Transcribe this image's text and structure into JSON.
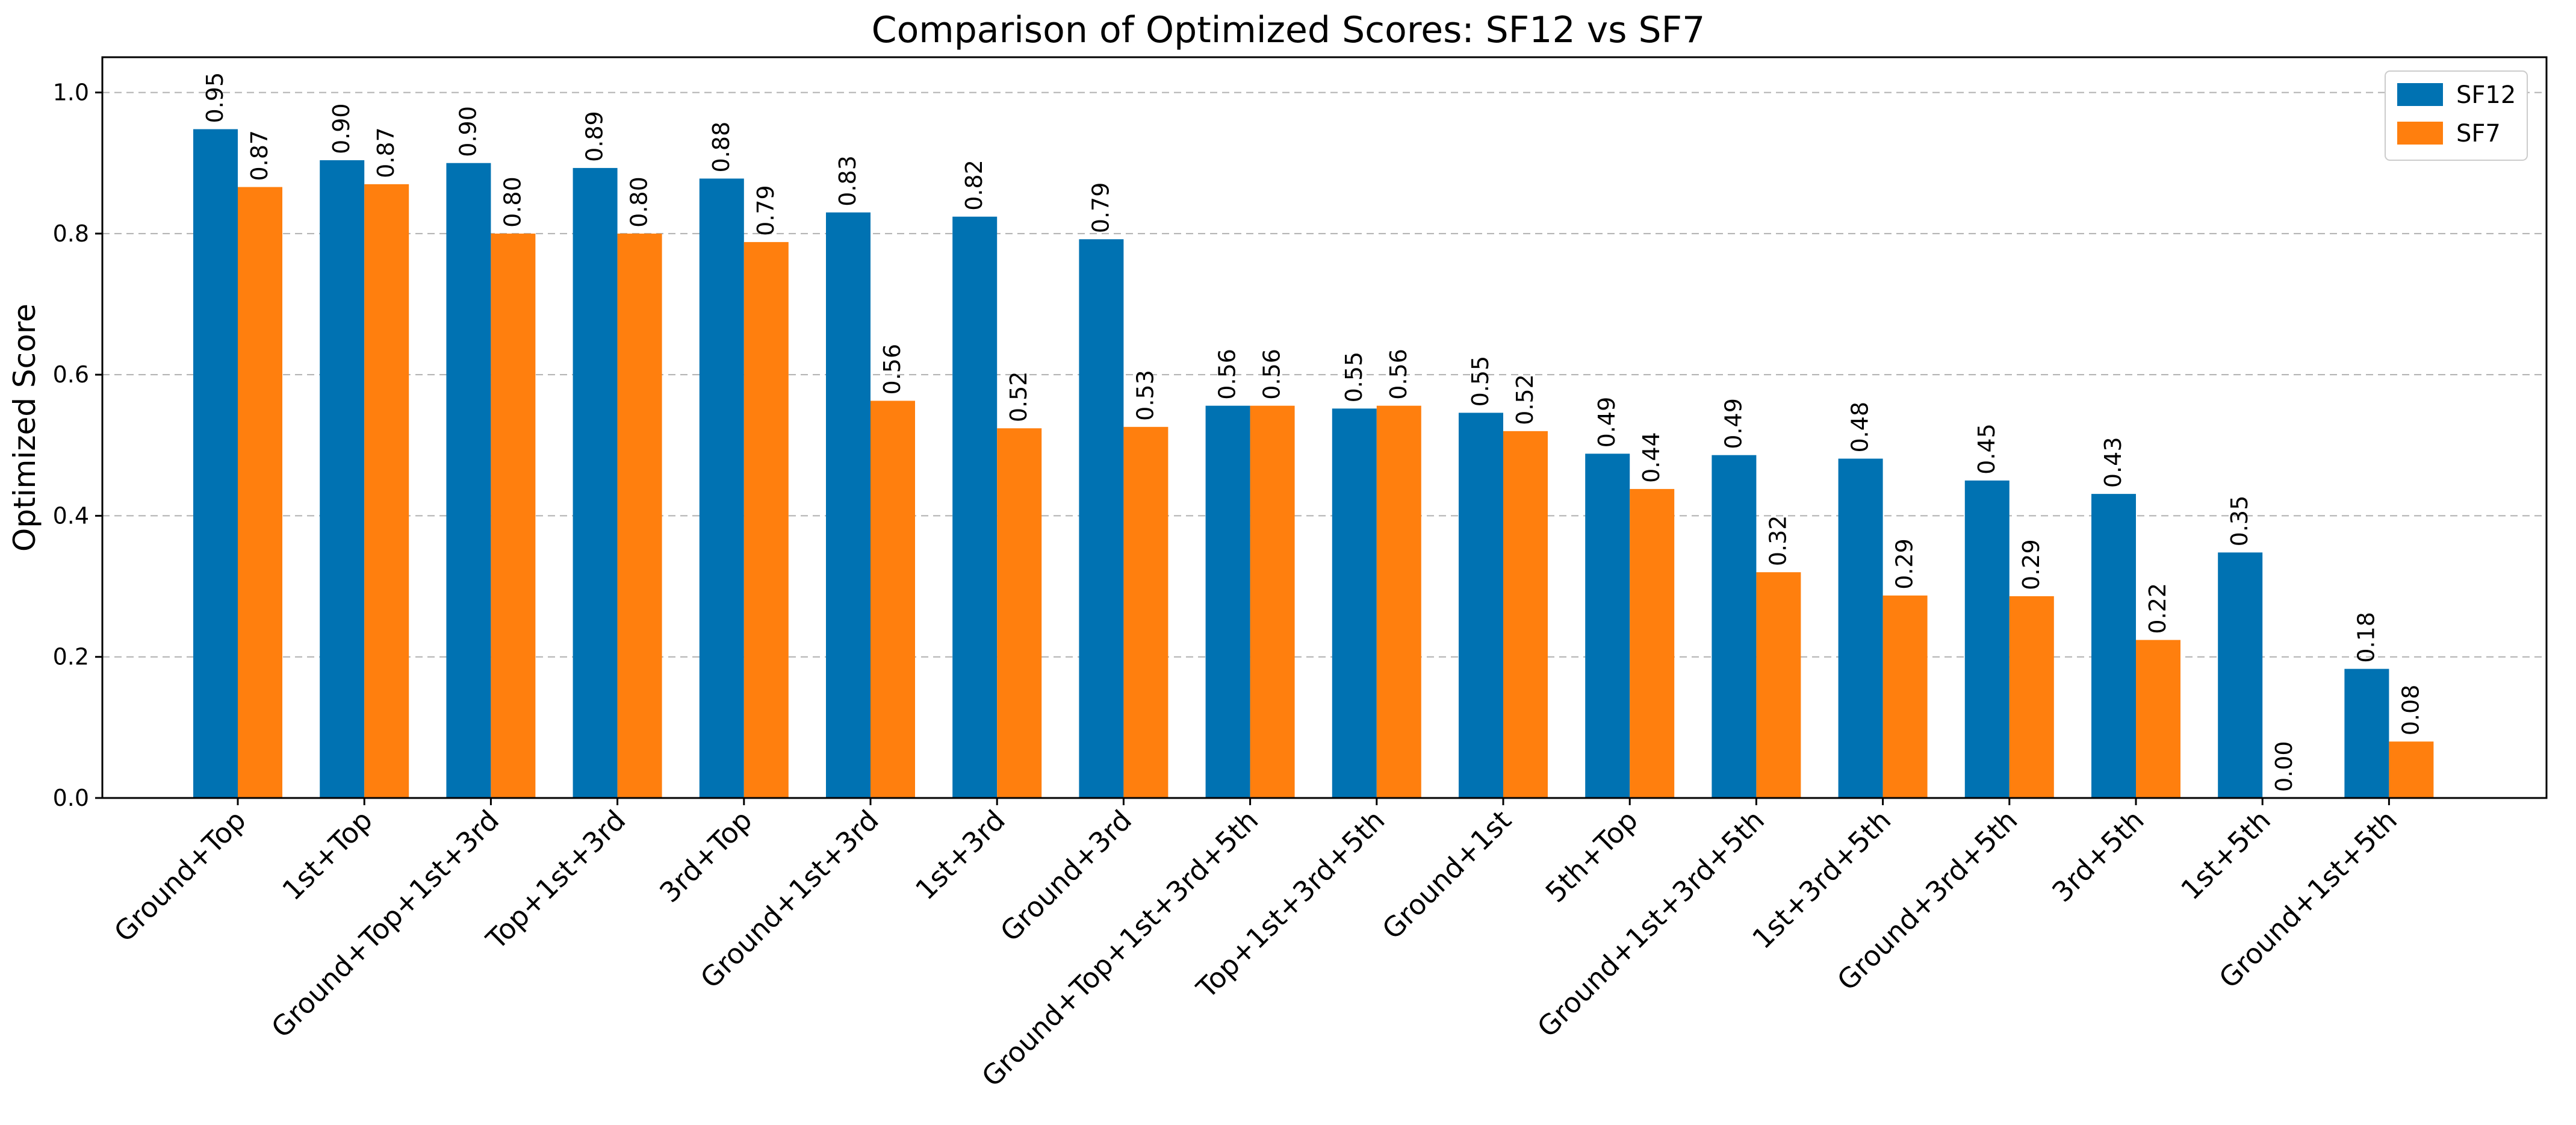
{
  "chart_data": {
    "type": "bar",
    "title": "Comparison of Optimized Scores: SF12 vs SF7",
    "xlabel": "",
    "ylabel": "Optimized Score",
    "ylim": [
      0,
      1.05
    ],
    "yticks": [
      0.0,
      0.2,
      0.4,
      0.6,
      0.8,
      1.0
    ],
    "ytick_labels": [
      "0.0",
      "0.2",
      "0.4",
      "0.6",
      "0.8",
      "1.0"
    ],
    "grid": "y-dashed",
    "legend_position": "top-right",
    "categories": [
      "Ground+Top",
      "1st+Top",
      "Ground+Top+1st+3rd",
      "Top+1st+3rd",
      "3rd+Top",
      "Ground+1st+3rd",
      "1st+3rd",
      "Ground+3rd",
      "Ground+Top+1st+3rd+5th",
      "Top+1st+3rd+5th",
      "Ground+1st",
      "5th+Top",
      "Ground+1st+3rd+5th",
      "1st+3rd+5th",
      "Ground+3rd+5th",
      "3rd+5th",
      "1st+5th",
      "Ground+1st+5th"
    ],
    "series": [
      {
        "name": "SF12",
        "color": "#0072b2",
        "values": [
          0.948,
          0.904,
          0.9,
          0.893,
          0.878,
          0.83,
          0.824,
          0.792,
          0.556,
          0.552,
          0.546,
          0.488,
          0.486,
          0.481,
          0.45,
          0.431,
          0.348,
          0.183
        ],
        "labels": [
          "0.95",
          "0.90",
          "0.90",
          "0.89",
          "0.88",
          "0.83",
          "0.82",
          "0.79",
          "0.56",
          "0.55",
          "0.55",
          "0.49",
          "0.49",
          "0.48",
          "0.45",
          "0.43",
          "0.35",
          "0.18"
        ]
      },
      {
        "name": "SF7",
        "color": "#ff7f0e",
        "values": [
          0.866,
          0.87,
          0.8,
          0.8,
          0.788,
          0.563,
          0.524,
          0.526,
          0.556,
          0.556,
          0.52,
          0.438,
          0.32,
          0.287,
          0.286,
          0.224,
          0.0,
          0.08
        ],
        "labels": [
          "0.87",
          "0.87",
          "0.80",
          "0.80",
          "0.79",
          "0.56",
          "0.52",
          "0.53",
          "0.56",
          "0.56",
          "0.52",
          "0.44",
          "0.32",
          "0.29",
          "0.29",
          "0.22",
          "0.00",
          "0.08"
        ]
      }
    ]
  }
}
